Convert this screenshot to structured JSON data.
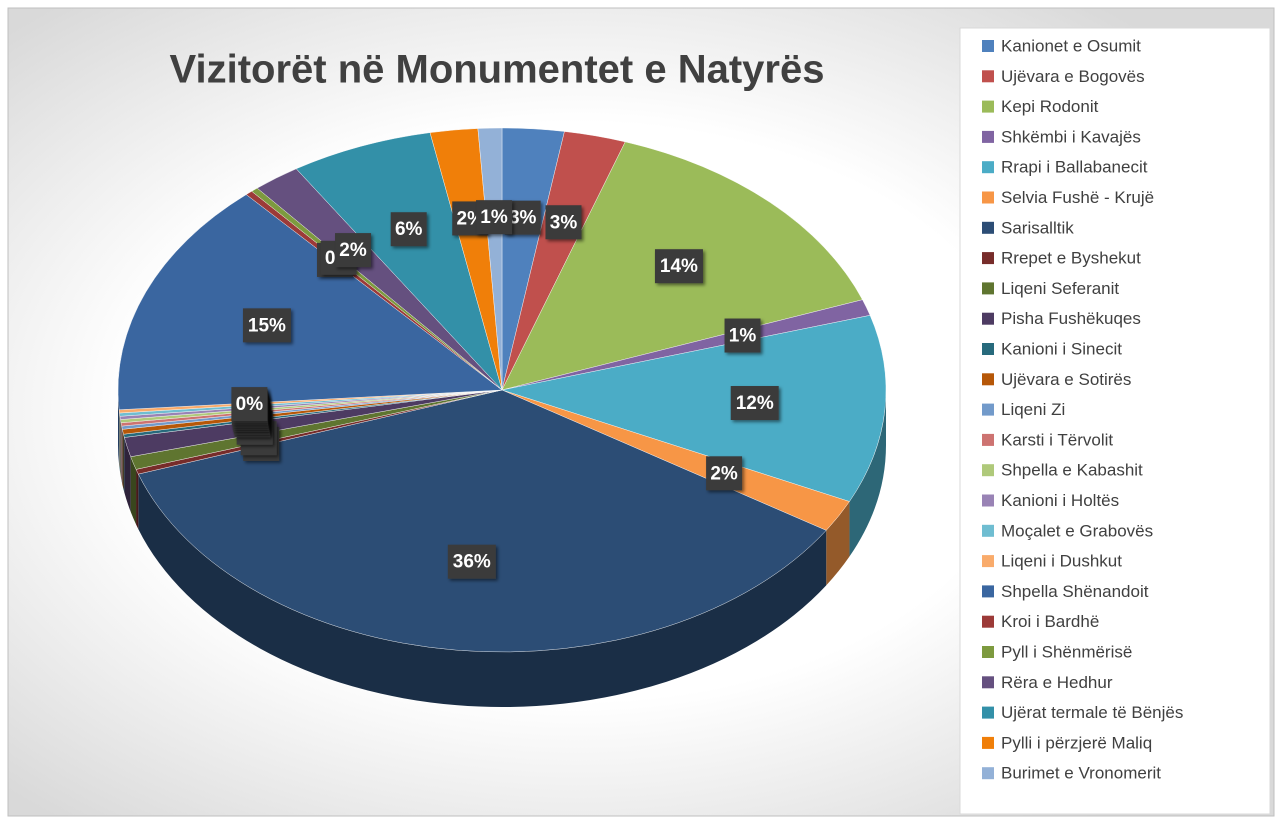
{
  "chart_data": {
    "type": "pie",
    "title": "Vizitorët në Monumentet e Natyrës",
    "categories": [
      "Kanionet e Osumit",
      "Ujëvara e Bogovës",
      "Kepi Rodonit",
      "Shkëmbi i Kavajës",
      "Rrapi i Ballabanecit",
      "Selvia Fushë - Krujë",
      "Sarisalltik",
      "Rrepet e Byshekut",
      "Liqeni Seferanit",
      "Pisha Fushëkuqes",
      "Kanioni i Sinecit",
      "Ujëvara e  Sotirës",
      "Liqeni Zi",
      "Karsti  i Tërvolit",
      "Shpella e Kabashit",
      "Kanioni i Holtës",
      "Moçalet e Grabovës",
      "Liqeni i Dushkut",
      "Shpella Shënandoit",
      "Kroi i Bardhë",
      "Pyll i Shënmërisë",
      "Rëra e Hedhur",
      "Ujërat termale të Bënjës",
      "Pylli i përzjerë Maliq",
      "Burimet e Vronomerit"
    ],
    "values": [
      2.6,
      2.6,
      14.2,
      1,
      11.6,
      2,
      35.8,
      0.3,
      0.8,
      1.2,
      0.2,
      0.3,
      0.2,
      0.2,
      0.2,
      0.2,
      0.2,
      0.2,
      14.6,
      0.3,
      0.3,
      2,
      6,
      2,
      1
    ],
    "value_labels": [
      "3%",
      "3%",
      "14%",
      "1%",
      "12%",
      "2%",
      "36%",
      "0%",
      "1%",
      "1%",
      "0%",
      "0%",
      "0%",
      "0%",
      "0%",
      "0%",
      "0%",
      "0%",
      "15%",
      "0%",
      "0%",
      "2%",
      "6%",
      "2%",
      "1%"
    ],
    "colors": [
      "#4f81bd",
      "#c0504d",
      "#9bbb59",
      "#8064a2",
      "#4bacc6",
      "#f79646",
      "#2c4d75",
      "#772c2a",
      "#5f7530",
      "#4d3b62",
      "#276a7c",
      "#b65708",
      "#729aca",
      "#cd7371",
      "#afc97a",
      "#9983b5",
      "#6fbdd1",
      "#f9ab6b",
      "#3a66a0",
      "#9c3a38",
      "#7d9a3f",
      "#65507f",
      "#3390a8",
      "#f07f09",
      "#93b1d7"
    ],
    "legend": "right"
  }
}
